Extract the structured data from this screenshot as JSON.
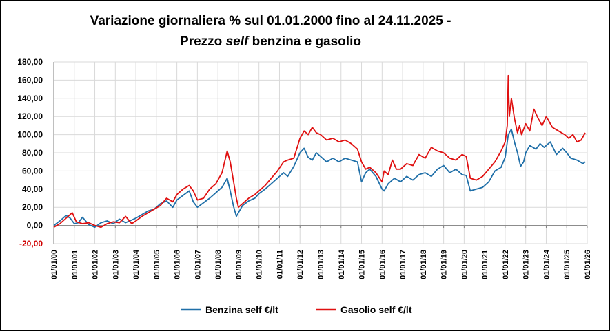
{
  "title_line1": "Variazione giornaliera  % sul 01.01.2000 fino al 24.11.2025 -",
  "title_line2_pre": "Prezzo ",
  "title_line2_em": "self",
  "title_line2_post": " benzina e gasolio",
  "chart_data": {
    "type": "line",
    "title": "Variazione giornaliera  % sul 01.01.2000 fino al 24.11.2025 - Prezzo self benzina e gasolio",
    "xlabel": "",
    "ylabel": "",
    "ylim": [
      -20,
      180
    ],
    "xlim": [
      2000,
      2026
    ],
    "grid": true,
    "legend_position": "bottom",
    "y_ticks": [
      "-20,00",
      "0,00",
      "20,00",
      "40,00",
      "60,00",
      "80,00",
      "100,00",
      "120,00",
      "140,00",
      "160,00",
      "180,00"
    ],
    "y_tick_colors": [
      "#d00000",
      "#000000",
      "#000000",
      "#000000",
      "#000000",
      "#000000",
      "#000000",
      "#000000",
      "#000000",
      "#000000",
      "#000000"
    ],
    "x_ticks": [
      "01/01/00",
      "01/01/01",
      "01/01/02",
      "01/01/03",
      "01/01/04",
      "01/01/05",
      "01/01/06",
      "01/01/07",
      "01/01/08",
      "01/01/09",
      "01/01/10",
      "01/01/11",
      "01/01/12",
      "01/01/13",
      "01/01/14",
      "01/01/15",
      "01/01/16",
      "01/01/17",
      "01/01/18",
      "01/01/19",
      "01/01/20",
      "01/01/21",
      "01/01/22",
      "01/01/23",
      "01/01/24",
      "01/01/25",
      "01/01/26"
    ],
    "series": [
      {
        "name": "Benzina self €/lt",
        "color": "#1f6fa8",
        "x": [
          2000.0,
          2000.3,
          2000.6,
          2000.8,
          2001.0,
          2001.2,
          2001.4,
          2001.7,
          2002.0,
          2002.3,
          2002.6,
          2002.9,
          2003.2,
          2003.5,
          2003.8,
          2004.0,
          2004.3,
          2004.6,
          2004.9,
          2005.2,
          2005.5,
          2005.8,
          2006.0,
          2006.3,
          2006.6,
          2006.8,
          2007.0,
          2007.3,
          2007.6,
          2007.9,
          2008.2,
          2008.45,
          2008.6,
          2008.75,
          2008.9,
          2009.0,
          2009.2,
          2009.5,
          2009.8,
          2010.0,
          2010.3,
          2010.6,
          2010.9,
          2011.2,
          2011.4,
          2011.7,
          2012.0,
          2012.2,
          2012.4,
          2012.6,
          2012.8,
          2013.0,
          2013.3,
          2013.6,
          2013.9,
          2014.2,
          2014.5,
          2014.8,
          2015.0,
          2015.2,
          2015.4,
          2015.7,
          2016.0,
          2016.1,
          2016.3,
          2016.6,
          2016.9,
          2017.2,
          2017.5,
          2017.8,
          2018.1,
          2018.4,
          2018.7,
          2019.0,
          2019.3,
          2019.6,
          2019.9,
          2020.1,
          2020.3,
          2020.6,
          2020.9,
          2021.2,
          2021.5,
          2021.8,
          2022.0,
          2022.15,
          2022.3,
          2022.45,
          2022.6,
          2022.75,
          2022.9,
          2023.0,
          2023.2,
          2023.5,
          2023.7,
          2023.9,
          2024.2,
          2024.5,
          2024.8,
          2025.0,
          2025.2,
          2025.5,
          2025.8,
          2025.9
        ],
        "values": [
          0,
          5,
          11,
          8,
          2,
          3,
          9,
          1,
          -2,
          3,
          5,
          2,
          7,
          3,
          6,
          8,
          12,
          16,
          18,
          24,
          27,
          20,
          28,
          33,
          38,
          26,
          20,
          25,
          30,
          36,
          42,
          52,
          38,
          22,
          10,
          14,
          22,
          27,
          30,
          35,
          40,
          46,
          52,
          58,
          54,
          65,
          80,
          85,
          75,
          72,
          80,
          76,
          70,
          74,
          70,
          74,
          72,
          70,
          48,
          58,
          62,
          54,
          40,
          38,
          46,
          52,
          48,
          54,
          50,
          56,
          58,
          54,
          62,
          66,
          58,
          62,
          56,
          55,
          38,
          40,
          42,
          48,
          60,
          64,
          75,
          100,
          106,
          92,
          80,
          65,
          70,
          80,
          88,
          84,
          90,
          86,
          92,
          78,
          85,
          80,
          74,
          72,
          68,
          70
        ]
      },
      {
        "name": "Gasolio self €/lt",
        "color": "#e01010",
        "x": [
          2000.0,
          2000.3,
          2000.6,
          2000.9,
          2001.1,
          2001.4,
          2001.7,
          2002.0,
          2002.3,
          2002.6,
          2002.9,
          2003.2,
          2003.5,
          2003.8,
          2004.0,
          2004.3,
          2004.6,
          2004.9,
          2005.2,
          2005.5,
          2005.8,
          2006.0,
          2006.3,
          2006.6,
          2006.8,
          2007.0,
          2007.3,
          2007.6,
          2007.9,
          2008.2,
          2008.45,
          2008.6,
          2008.75,
          2008.9,
          2009.0,
          2009.2,
          2009.5,
          2009.8,
          2010.0,
          2010.3,
          2010.6,
          2010.9,
          2011.2,
          2011.4,
          2011.7,
          2012.0,
          2012.2,
          2012.4,
          2012.6,
          2012.8,
          2013.0,
          2013.3,
          2013.6,
          2013.9,
          2014.2,
          2014.5,
          2014.8,
          2015.0,
          2015.2,
          2015.4,
          2015.7,
          2016.0,
          2016.1,
          2016.3,
          2016.5,
          2016.7,
          2016.9,
          2017.2,
          2017.5,
          2017.8,
          2018.1,
          2018.4,
          2018.7,
          2019.0,
          2019.3,
          2019.6,
          2019.9,
          2020.1,
          2020.3,
          2020.6,
          2020.9,
          2021.2,
          2021.5,
          2021.8,
          2022.0,
          2022.1,
          2022.15,
          2022.2,
          2022.3,
          2022.45,
          2022.6,
          2022.7,
          2022.8,
          2022.9,
          2023.0,
          2023.2,
          2023.4,
          2023.6,
          2023.8,
          2024.0,
          2024.3,
          2024.6,
          2024.9,
          2025.1,
          2025.3,
          2025.5,
          2025.7,
          2025.9
        ],
        "values": [
          -2,
          2,
          8,
          14,
          4,
          2,
          3,
          0,
          -2,
          2,
          4,
          3,
          10,
          2,
          5,
          10,
          14,
          18,
          22,
          30,
          26,
          34,
          40,
          44,
          38,
          28,
          30,
          40,
          46,
          58,
          82,
          70,
          50,
          30,
          20,
          24,
          30,
          34,
          38,
          44,
          52,
          60,
          70,
          72,
          74,
          96,
          104,
          100,
          108,
          102,
          100,
          94,
          96,
          92,
          94,
          90,
          84,
          70,
          62,
          64,
          58,
          48,
          60,
          56,
          72,
          62,
          62,
          68,
          66,
          78,
          74,
          86,
          82,
          80,
          74,
          72,
          78,
          76,
          52,
          50,
          54,
          62,
          70,
          82,
          92,
          110,
          165,
          120,
          140,
          118,
          102,
          110,
          100,
          106,
          112,
          104,
          128,
          118,
          110,
          120,
          108,
          104,
          100,
          96,
          100,
          92,
          94,
          102
        ]
      }
    ]
  }
}
